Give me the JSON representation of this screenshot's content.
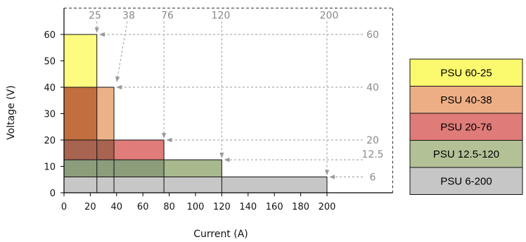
{
  "chart_data": {
    "type": "area",
    "xlabel": "Current (A)",
    "ylabel": "Voltage (V)",
    "xlim": [
      0,
      250
    ],
    "ylim": [
      0,
      70
    ],
    "x_ticks": [
      "0",
      "20",
      "40",
      "60",
      "80",
      "100",
      "120",
      "140",
      "160",
      "180",
      "200"
    ],
    "x_tick_values": [
      0,
      20,
      40,
      60,
      80,
      100,
      120,
      140,
      160,
      180,
      200
    ],
    "y_ticks": [
      "0",
      "10",
      "20",
      "30",
      "40",
      "50",
      "60"
    ],
    "y_tick_values": [
      0,
      10,
      20,
      30,
      40,
      50,
      60
    ],
    "series": [
      {
        "name": "PSU 60-25",
        "voltage": 60,
        "current": 25,
        "color": "#f2e010",
        "legend_color": "#fbf96e",
        "fill": "#fdfb80"
      },
      {
        "name": "PSU 40-38",
        "voltage": 40,
        "current": 38,
        "color": "#d9762e",
        "legend_color": "#eeae85",
        "fill": "#ecb287"
      },
      {
        "name": "PSU 20-76",
        "voltage": 20,
        "current": 76,
        "color": "#c0352f",
        "legend_color": "#df7b78",
        "fill": "#e07c7a"
      },
      {
        "name": "PSU 12.5-120",
        "voltage": 12.5,
        "current": 120,
        "color": "#5a7a3c",
        "legend_color": "#b2c196",
        "fill": "#a8b98d"
      },
      {
        "name": "PSU 6-200",
        "voltage": 6,
        "current": 200,
        "color": "#9a9a9a",
        "legend_color": "#c6c6c6",
        "fill": "#c6c6c6"
      }
    ],
    "current_annotations": [
      "25",
      "38",
      "76",
      "120",
      "200"
    ],
    "voltage_annotations": [
      "60",
      "40",
      "20",
      "12.5",
      "6"
    ],
    "grid": false,
    "legend_position": "right"
  }
}
